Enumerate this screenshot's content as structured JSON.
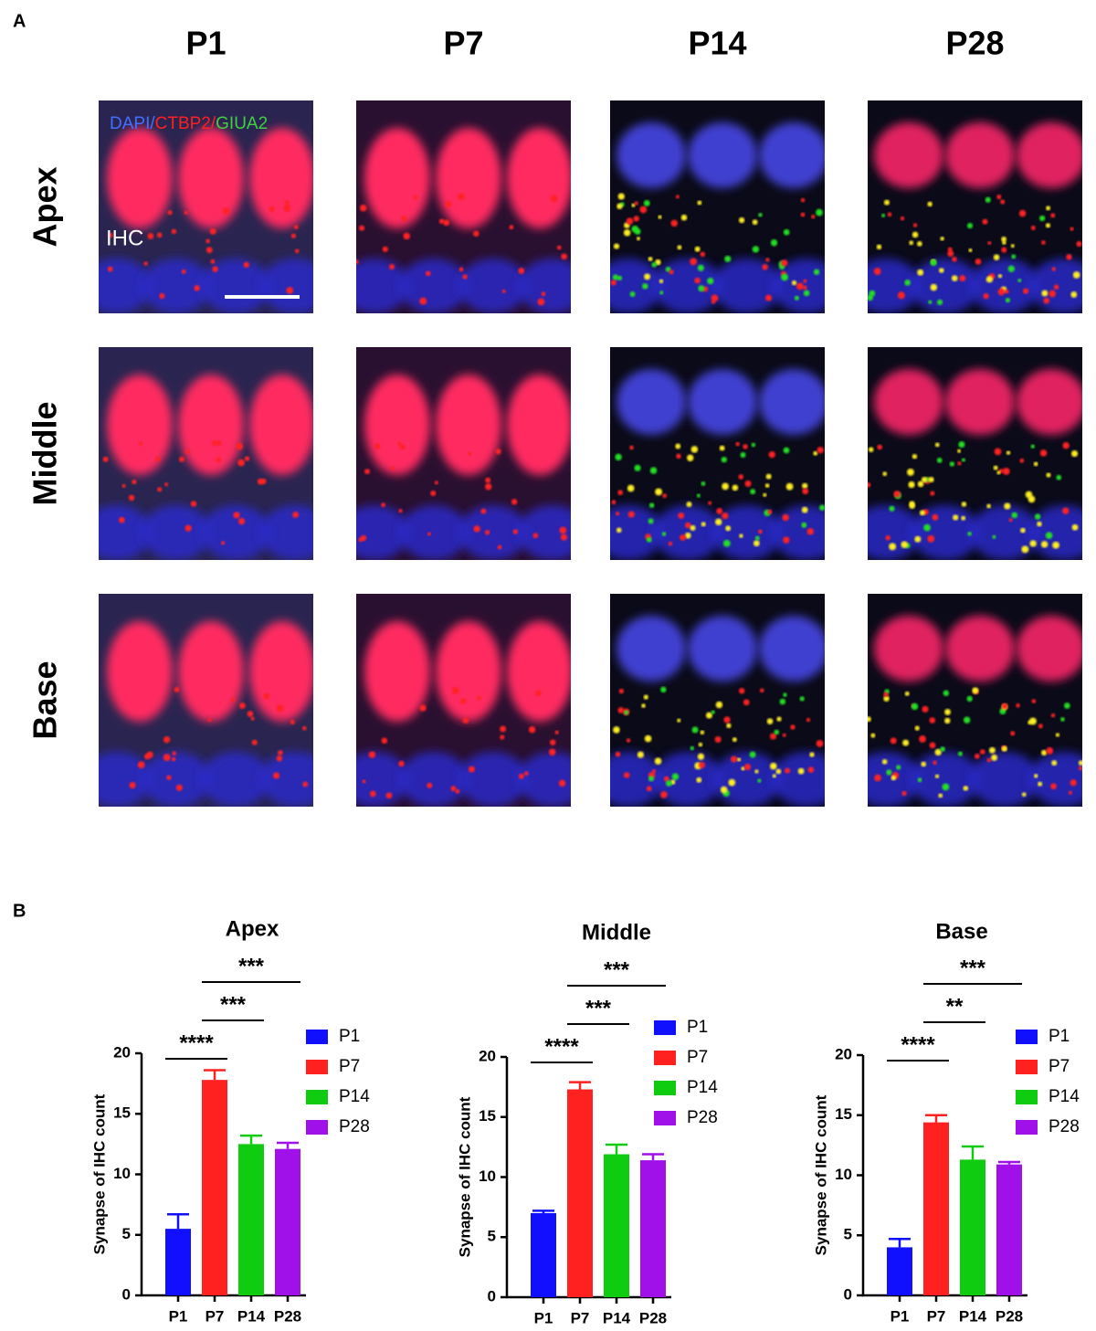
{
  "panel_a": {
    "label": "A",
    "columns": [
      "P1",
      "P7",
      "P14",
      "P28"
    ],
    "rows": [
      "Apex",
      "Middle",
      "Base"
    ],
    "stain_label": [
      "DAPI/",
      "CTBP2/",
      "GIUA2"
    ],
    "cell_label": "IHC"
  },
  "panel_b_label": "B",
  "chart_data": [
    {
      "type": "bar",
      "title": "Apex",
      "ylabel": "Synapse of  IHC count",
      "categories": [
        "P1",
        "P7",
        "P14",
        "P28"
      ],
      "values": [
        5.5,
        17.8,
        12.5,
        12.1
      ],
      "errors": [
        1.2,
        0.8,
        0.7,
        0.5
      ],
      "colors": [
        "#1010ff",
        "#ff2020",
        "#10cc10",
        "#a010e8"
      ],
      "ylim": [
        0,
        20
      ],
      "yticks": [
        0,
        5,
        10,
        15,
        20
      ],
      "comparisons": [
        {
          "label": "****",
          "between": [
            "P1",
            "P7"
          ]
        },
        {
          "label": "***",
          "between": [
            "P7",
            "P14"
          ]
        },
        {
          "label": "***",
          "between": [
            "P7",
            "P28"
          ]
        }
      ]
    },
    {
      "type": "bar",
      "title": "Middle",
      "ylabel": "Synapse of  IHC count",
      "categories": [
        "P1",
        "P7",
        "P14",
        "P28"
      ],
      "values": [
        7.0,
        17.3,
        11.9,
        11.4
      ],
      "errors": [
        0.2,
        0.6,
        0.8,
        0.5
      ],
      "colors": [
        "#1010ff",
        "#ff2020",
        "#10cc10",
        "#a010e8"
      ],
      "ylim": [
        0,
        20
      ],
      "yticks": [
        0,
        5,
        10,
        15,
        20
      ],
      "comparisons": [
        {
          "label": "****",
          "between": [
            "P1",
            "P7"
          ]
        },
        {
          "label": "***",
          "between": [
            "P7",
            "P14"
          ]
        },
        {
          "label": "***",
          "between": [
            "P7",
            "P28"
          ]
        }
      ]
    },
    {
      "type": "bar",
      "title": "Base",
      "ylabel": "Synapse of  IHC count",
      "categories": [
        "P1",
        "P7",
        "P14",
        "P28"
      ],
      "values": [
        4.0,
        14.4,
        11.3,
        10.9
      ],
      "errors": [
        0.7,
        0.6,
        1.1,
        0.2
      ],
      "colors": [
        "#1010ff",
        "#ff2020",
        "#10cc10",
        "#a010e8"
      ],
      "ylim": [
        0,
        20
      ],
      "yticks": [
        0,
        5,
        10,
        15,
        20
      ],
      "comparisons": [
        {
          "label": "****",
          "between": [
            "P1",
            "P7"
          ]
        },
        {
          "label": "**",
          "between": [
            "P7",
            "P14"
          ]
        },
        {
          "label": "***",
          "between": [
            "P7",
            "P28"
          ]
        }
      ]
    }
  ]
}
